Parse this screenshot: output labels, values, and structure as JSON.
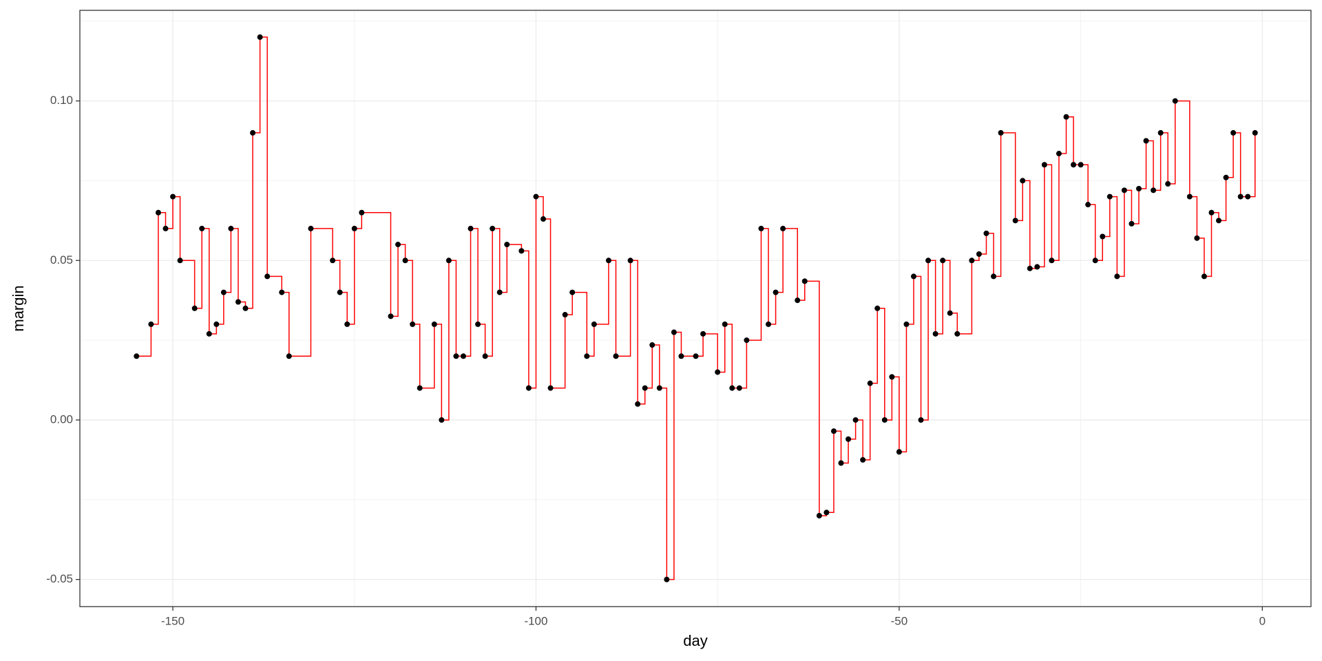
{
  "chart_data": {
    "type": "step",
    "x_label": "day",
    "y_label": "margin",
    "x": [
      -155,
      -153,
      -152,
      -151,
      -150,
      -149,
      -147,
      -146,
      -145,
      -144,
      -143,
      -142,
      -141,
      -140,
      -139,
      -138,
      -137,
      -135,
      -134,
      -131,
      -128,
      -127,
      -126,
      -125,
      -124,
      -120,
      -119,
      -118,
      -117,
      -116,
      -114,
      -113,
      -112,
      -111,
      -110,
      -109,
      -108,
      -107,
      -106,
      -105,
      -104,
      -102,
      -101,
      -100,
      -99,
      -98,
      -96,
      -95,
      -93,
      -92,
      -90,
      -89,
      -87,
      -86,
      -85,
      -84,
      -83,
      -82,
      -81,
      -80,
      -78,
      -77,
      -75,
      -74,
      -73,
      -72,
      -71,
      -69,
      -68,
      -67,
      -66,
      -64,
      -63,
      -61,
      -60,
      -59,
      -58,
      -57,
      -56,
      -55,
      -54,
      -53,
      -52,
      -51,
      -50,
      -49,
      -48,
      -47,
      -46,
      -45,
      -44,
      -43,
      -42,
      -40,
      -39,
      -38,
      -37,
      -36,
      -34,
      -33,
      -32,
      -31,
      -30,
      -29,
      -28,
      -27,
      -26,
      -25,
      -24,
      -23,
      -22,
      -21,
      -20,
      -19,
      -18,
      -17,
      -16,
      -15,
      -14,
      -13,
      -12,
      -10,
      -9,
      -8,
      -7,
      -6,
      -5,
      -4,
      -3,
      -2,
      -1
    ],
    "values": [
      0.02,
      0.03,
      0.065,
      0.06,
      0.07,
      0.05,
      0.035,
      0.06,
      0.027,
      0.03,
      0.04,
      0.06,
      0.037,
      0.035,
      0.09,
      0.12,
      0.045,
      0.04,
      0.02,
      0.06,
      0.05,
      0.04,
      0.03,
      0.06,
      0.065,
      0.0325,
      0.055,
      0.05,
      0.03,
      0.01,
      0.03,
      0.0,
      0.05,
      0.02,
      0.02,
      0.06,
      0.03,
      0.02,
      0.06,
      0.04,
      0.055,
      0.053,
      0.01,
      0.07,
      0.063,
      0.01,
      0.033,
      0.04,
      0.02,
      0.03,
      0.05,
      0.02,
      0.05,
      0.005,
      0.01,
      0.0235,
      0.01,
      -0.05,
      0.0275,
      0.02,
      0.02,
      0.027,
      0.015,
      0.03,
      0.01,
      0.01,
      0.025,
      0.06,
      0.03,
      0.04,
      0.06,
      0.0375,
      0.0435,
      -0.03,
      -0.029,
      -0.0035,
      -0.0135,
      -0.006,
      0.0,
      -0.0125,
      0.0115,
      0.035,
      0.0,
      0.0135,
      -0.01,
      0.03,
      0.045,
      0.0,
      0.05,
      0.027,
      0.05,
      0.0335,
      0.027,
      0.05,
      0.052,
      0.0585,
      0.045,
      0.09,
      0.0625,
      0.075,
      0.0475,
      0.048,
      0.08,
      0.05,
      0.0835,
      0.095,
      0.08,
      0.08,
      0.0675,
      0.05,
      0.0575,
      0.07,
      0.045,
      0.072,
      0.0615,
      0.0725,
      0.0875,
      0.072,
      0.09,
      0.074,
      0.1,
      0.07,
      0.057,
      0.045,
      0.065,
      0.0625,
      0.076,
      0.09,
      0.07,
      0.07,
      0.09
    ],
    "line_color": "#ff0000",
    "point_color": "#000000",
    "xlim": [
      -162.8,
      6.7
    ],
    "ylim": [
      -0.0585,
      0.1284
    ],
    "xticks": [
      -150,
      -100,
      -50,
      0
    ],
    "yticks": [
      -0.05,
      {
        "value": 0,
        "label": "0.00"
      },
      0.05,
      {
        "value": 0.1,
        "label": "0.10"
      }
    ],
    "grid": true
  }
}
